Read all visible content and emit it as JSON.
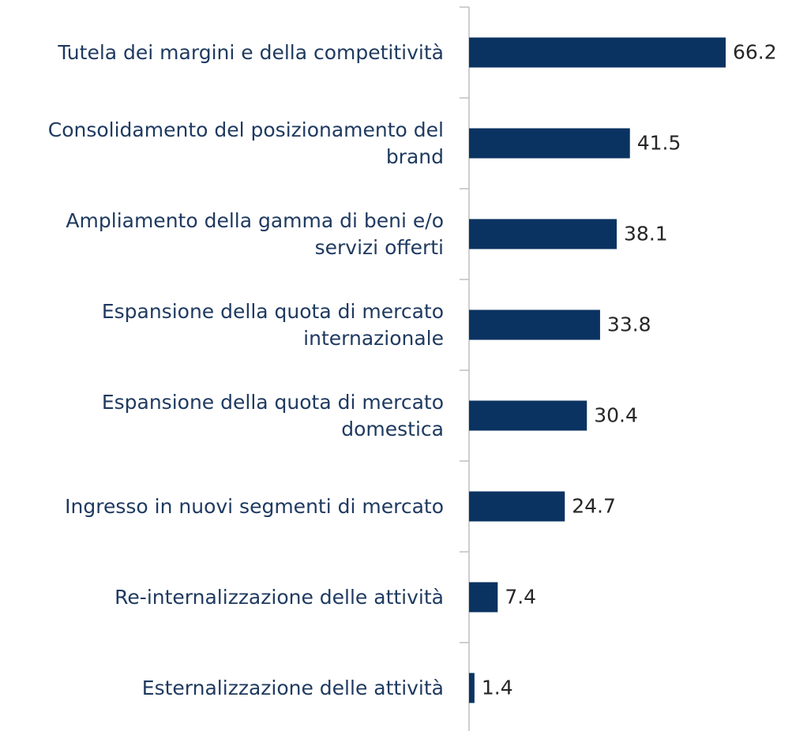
{
  "chart_data": {
    "type": "barh",
    "categories": [
      "Tutela dei margini e della competitività",
      "Consolidamento del posizionamento del brand",
      "Ampliamento della gamma di beni e/o servizi offerti",
      "Espansione della quota di mercato internazionale",
      "Espansione della quota di mercato domestica",
      "Ingresso in nuovi segmenti di mercato",
      "Re-internalizzazione delle attività",
      "Esternalizzazione delle attività"
    ],
    "values": [
      66.2,
      41.5,
      38.1,
      33.8,
      30.4,
      24.7,
      7.4,
      1.4
    ],
    "color": "#0b3361"
  }
}
